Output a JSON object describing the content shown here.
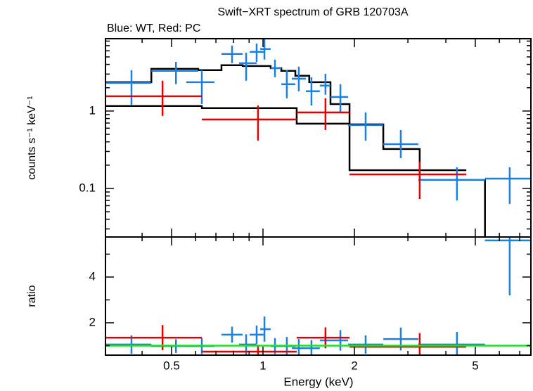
{
  "chart_data": [
    {
      "type": "spectrum",
      "title": "Swift−XRT spectrum of GRB 120703A",
      "subtitle": "Blue: WT, Red: PC",
      "ylabel": "counts s⁻¹ keV⁻¹",
      "ylog": true,
      "xlog": true,
      "xlim": [
        0.303,
        7.62
      ],
      "ylim": [
        0.0236,
        8.6
      ],
      "xticks": [
        0.5,
        1,
        2,
        5
      ],
      "xminor": [
        0.4,
        0.6,
        0.7,
        0.8,
        0.9,
        3,
        4,
        6,
        7
      ],
      "yticks": [
        0.1,
        1
      ],
      "yminor": [
        0.03,
        0.04,
        0.05,
        0.06,
        0.07,
        0.08,
        0.09,
        0.2,
        0.3,
        0.4,
        0.5,
        0.6,
        0.7,
        0.8,
        0.9,
        2,
        3,
        4,
        5,
        6,
        7,
        8
      ],
      "series": [
        {
          "color": "#1a80e6",
          "x": [
            0.369,
            0.517,
            0.629,
            0.791,
            0.88,
            0.953,
            1.011,
            1.095,
            1.198,
            1.312,
            1.444,
            1.606,
            1.798,
            2.177,
            2.842,
            4.35,
            6.49
          ],
          "x_low": [
            0.303,
            0.429,
            0.559,
            0.73,
            0.834,
            0.904,
            0.979,
            1.06,
            1.149,
            1.244,
            1.384,
            1.539,
            1.668,
            1.906,
            2.489,
            3.247,
            5.38
          ],
          "x_high": [
            0.429,
            0.612,
            0.692,
            0.857,
            0.953,
            1.005,
            1.06,
            1.149,
            1.278,
            1.384,
            1.539,
            1.668,
            1.906,
            2.489,
            3.247,
            5.38,
            7.62
          ],
          "values": [
            2.31,
            3.3,
            2.36,
            5.45,
            4.15,
            5.81,
            6.32,
            3.58,
            2.22,
            2.62,
            1.8,
            2.13,
            1.52,
            0.658,
            0.373,
            0.129,
            0.134
          ],
          "y_low": [
            1.18,
            2.22,
            1.23,
            4.15,
            2.46,
            4.32,
            4.61,
            2.73,
            1.46,
            1.8,
            1.18,
            1.62,
            0.96,
            0.415,
            0.246,
            0.07,
            0.063
          ],
          "y_high": [
            3.37,
            4.32,
            3.37,
            7.0,
            5.68,
            7.44,
            8.6,
            4.61,
            3.37,
            3.74,
            2.73,
            3.03,
            2.22,
            0.96,
            0.568,
            0.188,
            0.188
          ]
        },
        {
          "color": "#e60000",
          "x": [
            0.467,
            0.963,
            1.606,
            3.28
          ],
          "x_low": [
            0.303,
            0.629,
            1.291,
            1.927
          ],
          "x_high": [
            0.629,
            1.291,
            1.927,
            4.67
          ],
          "values": [
            1.55,
            0.778,
            0.959,
            0.152
          ],
          "y_low": [
            0.864,
            0.415,
            0.568,
            0.073
          ],
          "y_high": [
            2.46,
            1.18,
            1.46,
            0.222
          ]
        }
      ],
      "models": [
        {
          "color": "#000000",
          "edges": [
            0.303,
            0.429,
            0.612,
            0.73,
            0.857,
            1.06,
            1.149,
            1.278,
            1.42,
            1.668,
            1.927,
            2.489,
            3.28,
            5.38
          ],
          "values": [
            2.36,
            3.51,
            3.37,
            3.9,
            3.81,
            3.58,
            3.3,
            2.85,
            2.36,
            1.23,
            0.672,
            0.323,
            0.129
          ]
        },
        {
          "color": "#000000",
          "edges": [
            0.303,
            0.629,
            1.291,
            1.927,
            4.67
          ],
          "values": [
            1.16,
            1.09,
            0.686,
            0.172
          ]
        }
      ]
    },
    {
      "type": "ratio",
      "xlabel": "Energy (keV)",
      "ylabel": "ratio",
      "xlog": true,
      "xlim": [
        0.303,
        7.62
      ],
      "ylim": [
        0.585,
        5.75
      ],
      "xticks": [
        0.5,
        1,
        2,
        5
      ],
      "xminor": [
        0.4,
        0.6,
        0.7,
        0.8,
        0.9,
        3,
        4,
        6,
        7
      ],
      "yticks": [
        2,
        4
      ],
      "yminor": [
        1,
        3,
        5
      ],
      "reference": {
        "value": 1,
        "color": "#22dd22"
      },
      "series": [
        {
          "color": "#1a80e6",
          "x": [
            0.369,
            0.517,
            0.629,
            0.791,
            0.88,
            0.953,
            1.011,
            1.095,
            1.198,
            1.312,
            1.444,
            1.606,
            1.798,
            2.177,
            2.842,
            4.35,
            6.49
          ],
          "x_low": [
            0.303,
            0.429,
            0.559,
            0.73,
            0.834,
            0.904,
            0.979,
            1.06,
            1.149,
            1.244,
            1.384,
            1.539,
            1.668,
            1.906,
            2.489,
            3.247,
            5.38
          ],
          "x_high": [
            0.429,
            0.612,
            0.692,
            0.857,
            0.953,
            1.005,
            1.06,
            1.149,
            1.278,
            1.384,
            1.539,
            1.668,
            1.906,
            2.489,
            3.247,
            5.38,
            7.62
          ],
          "values": [
            1.05,
            0.98,
            0.98,
            1.48,
            1.05,
            1.48,
            1.72,
            0.98,
            0.98,
            0.89,
            0.89,
            1.23,
            1.23,
            1.05,
            1.29,
            1.05,
            5.6
          ],
          "errors": [
            0.4,
            0.3,
            0.35,
            0.35,
            0.45,
            0.4,
            0.55,
            0.35,
            0.4,
            0.4,
            0.35,
            0.35,
            0.45,
            0.4,
            0.5,
            0.55,
            2.4
          ]
        },
        {
          "color": "#e60000",
          "x": [
            0.467,
            0.963,
            1.606,
            3.28
          ],
          "x_low": [
            0.303,
            0.629,
            1.291,
            1.927
          ],
          "x_high": [
            0.629,
            1.291,
            1.927,
            4.67
          ],
          "values": [
            1.35,
            0.74,
            1.35,
            0.95
          ],
          "errors": [
            0.55,
            0.3,
            0.45,
            0.6
          ]
        }
      ]
    }
  ]
}
